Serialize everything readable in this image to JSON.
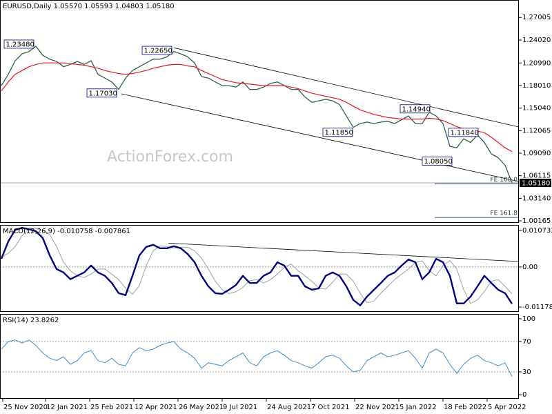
{
  "chart_data": [
    {
      "type": "line",
      "title": "EURUSD,Daily  1.05570 1.05593 1.04803 1.05180",
      "watermark": "ActionForex.com",
      "xlim": [
        -1,
        375
      ],
      "ylim": [
        0.999,
        1.293
      ],
      "yticks": [
        1.27005,
        {
          "value": 1.2402,
          "label": "1.24020"
        },
        {
          "value": 1.2099,
          "label": "1.20990"
        },
        {
          "value": 1.1801,
          "label": "1.18010"
        },
        {
          "value": 1.1504,
          "label": "1.15040"
        },
        1.12065,
        {
          "value": 1.0909,
          "label": "1.09090"
        },
        1.06115,
        {
          "value": 1.0314,
          "label": "1.03140"
        },
        1.00165
      ],
      "x": [
        0,
        5,
        10,
        15,
        20,
        25,
        30,
        35,
        40,
        45,
        50,
        55,
        60,
        65,
        70,
        75,
        80,
        85,
        90,
        95,
        100,
        105,
        110,
        115,
        120,
        125,
        130,
        135,
        140,
        145,
        150,
        155,
        160,
        165,
        170,
        175,
        180,
        185,
        190,
        195,
        200,
        205,
        210,
        215,
        220,
        225,
        230,
        235,
        240,
        245,
        250,
        255,
        260,
        265,
        270,
        275,
        280,
        285,
        290,
        295,
        300,
        305,
        310,
        315,
        320,
        325,
        330,
        335,
        340,
        345,
        350,
        355,
        360,
        365,
        370
      ],
      "series": [
        {
          "color": "#2f5f4f",
          "width": 1.3,
          "values": [
            1.18,
            1.195,
            1.213,
            1.222,
            1.225,
            1.232,
            1.22,
            1.215,
            1.212,
            1.205,
            1.208,
            1.212,
            1.208,
            1.213,
            1.195,
            1.19,
            1.185,
            1.175,
            1.19,
            1.2,
            1.205,
            1.21,
            1.215,
            1.215,
            1.218,
            1.225,
            1.222,
            1.218,
            1.21,
            1.192,
            1.19,
            1.185,
            1.18,
            1.18,
            1.178,
            1.185,
            1.175,
            1.175,
            1.178,
            1.183,
            1.185,
            1.18,
            1.175,
            1.175,
            1.165,
            1.158,
            1.16,
            1.162,
            1.16,
            1.155,
            1.14,
            1.125,
            1.13,
            1.132,
            1.13,
            1.132,
            1.133,
            1.13,
            1.135,
            1.14,
            1.13,
            1.13,
            1.145,
            1.14,
            1.13,
            1.1,
            1.098,
            1.11,
            1.105,
            1.115,
            1.105,
            1.09,
            1.085,
            1.075,
            1.052
          ]
        },
        {
          "color": "#e31a1c",
          "width": 1.2,
          "values": [
            1.173,
            1.185,
            1.195,
            1.2,
            1.205,
            1.208,
            1.21,
            1.21,
            1.21,
            1.21,
            1.209,
            1.208,
            1.207,
            1.205,
            1.203,
            1.2,
            1.198,
            1.196,
            1.195,
            1.196,
            1.198,
            1.2,
            1.203,
            1.205,
            1.207,
            1.208,
            1.208,
            1.206,
            1.205,
            1.2,
            1.196,
            1.192,
            1.188,
            1.186,
            1.184,
            1.183,
            1.182,
            1.181,
            1.18,
            1.18,
            1.18,
            1.18,
            1.178,
            1.176,
            1.173,
            1.17,
            1.168,
            1.166,
            1.164,
            1.162,
            1.158,
            1.153,
            1.148,
            1.145,
            1.142,
            1.14,
            1.138,
            1.137,
            1.136,
            1.136,
            1.136,
            1.136,
            1.137,
            1.136,
            1.134,
            1.13,
            1.126,
            1.123,
            1.121,
            1.12,
            1.118,
            1.112,
            1.105,
            1.098,
            1.093
          ]
        }
      ],
      "trendlines": [
        {
          "x": [
            125,
            375
          ],
          "values": [
            1.23,
            1.1255
          ]
        },
        {
          "x": [
            87,
            375
          ],
          "values": [
            1.1692,
            1.0536
          ]
        }
      ],
      "annotations": [
        {
          "text": "1.23480",
          "x": 2,
          "value": 1.2348
        },
        {
          "text": "1.22650",
          "x": 102,
          "value": 1.2265
        },
        {
          "text": "1.17030",
          "x": 62,
          "value": 1.1703
        },
        {
          "text": "1.11850",
          "x": 233,
          "value": 1.1185
        },
        {
          "text": "1.14940",
          "x": 289,
          "value": 1.1494
        },
        {
          "text": "1.11840",
          "x": 324,
          "value": 1.1184
        },
        {
          "text": "1.08050",
          "x": 305,
          "value": 1.0805
        }
      ],
      "levels": [
        {
          "label": "FE 100.0",
          "value": 1.0505,
          "x": [
            314,
            375
          ]
        },
        {
          "label": "FE 161.8",
          "value": 1.0061,
          "x": [
            314,
            375
          ]
        }
      ],
      "last_price": {
        "value": 1.0518,
        "label": "1.05180"
      }
    },
    {
      "type": "line",
      "title": "MACD(12,26,9) -0.010758 -0.007861",
      "xlim": [
        -1,
        375
      ],
      "ylim": [
        -0.0132,
        0.01235
      ],
      "yticks": [
        0.010732,
        {
          "value": 0,
          "label": "0.00"
        },
        -0.011781
      ],
      "levels": [
        0
      ],
      "x": [
        0,
        5,
        10,
        15,
        20,
        25,
        30,
        35,
        40,
        45,
        50,
        55,
        60,
        65,
        70,
        75,
        80,
        85,
        90,
        95,
        100,
        105,
        110,
        115,
        120,
        125,
        130,
        135,
        140,
        145,
        150,
        155,
        160,
        165,
        170,
        175,
        180,
        185,
        190,
        195,
        200,
        205,
        210,
        215,
        220,
        225,
        230,
        235,
        240,
        245,
        250,
        255,
        260,
        265,
        270,
        275,
        280,
        285,
        290,
        295,
        300,
        305,
        310,
        315,
        320,
        325,
        330,
        335,
        340,
        345,
        350,
        355,
        360,
        365,
        370
      ],
      "series": [
        {
          "color": "#a0a0a0",
          "width": 1,
          "values": [
            0.003,
            0.004,
            0.006,
            0.0092,
            0.0112,
            0.0113,
            0.0108,
            0.0095,
            0.006,
            0.0014,
            -0.0011,
            -0.0026,
            -0.0031,
            -0.0021,
            -0.0006,
            -0.0006,
            -0.0021,
            -0.0037,
            -0.0062,
            -0.008,
            -0.0055,
            0.0004,
            0.0047,
            0.0062,
            0.006,
            0.0055,
            0.0058,
            0.0058,
            0.0047,
            0.0026,
            -0.0006,
            -0.0042,
            -0.0067,
            -0.0078,
            -0.0073,
            -0.006,
            -0.004,
            -0.0037,
            -0.0047,
            -0.0037,
            -0.0021,
            -0.0001,
            0.0009,
            -0.0011,
            -0.0026,
            -0.0042,
            -0.0062,
            -0.0065,
            -0.0045,
            -0.0021,
            -0.0021,
            -0.0042,
            -0.0077,
            -0.0105,
            -0.01,
            -0.0077,
            -0.0057,
            -0.0037,
            -0.0021,
            -0.0006,
            0.0013,
            0.0018,
            -0.0011,
            -0.0026,
            0.0004,
            0.0019,
            -0.0006,
            -0.0067,
            -0.0107,
            -0.0097,
            -0.0072,
            -0.0042,
            -0.0037,
            -0.0057,
            -0.0079
          ]
        },
        {
          "color": "#000080",
          "width": 2.4,
          "values": [
            0.0024,
            0.0075,
            0.0109,
            0.0115,
            0.0111,
            0.0105,
            0.0085,
            0.0034,
            -0.0006,
            -0.0016,
            -0.0036,
            -0.0026,
            -0.0016,
            0.0004,
            -0.0016,
            -0.0026,
            -0.0047,
            -0.0077,
            -0.0083,
            -0.0026,
            0.0034,
            0.0059,
            0.0065,
            0.0055,
            0.0055,
            0.0061,
            0.0055,
            0.0038,
            0.0014,
            -0.0026,
            -0.0057,
            -0.0077,
            -0.0079,
            -0.0067,
            -0.0053,
            -0.0026,
            -0.0047,
            -0.0047,
            -0.0026,
            -0.0016,
            0.0014,
            0.0004,
            -0.0026,
            -0.0026,
            -0.0057,
            -0.0067,
            -0.0063,
            -0.0026,
            -0.0016,
            -0.0026,
            -0.0057,
            -0.0097,
            -0.0113,
            -0.0087,
            -0.0067,
            -0.0047,
            -0.0026,
            -0.0016,
            0.0004,
            0.0022,
            0.0014,
            -0.0036,
            -0.0016,
            0.0024,
            0.0014,
            -0.0026,
            -0.0107,
            -0.0107,
            -0.0087,
            -0.0057,
            -0.0026,
            -0.0047,
            -0.0067,
            -0.0077,
            -0.0108
          ]
        }
      ],
      "trendlines": [
        {
          "x": [
            121,
            375
          ],
          "values": [
            0.007,
            0.0016
          ]
        }
      ]
    },
    {
      "type": "line",
      "title": "RSI(14) 23.8262",
      "xlim": [
        -1,
        375
      ],
      "ylim": [
        -5.5,
        106.4
      ],
      "yticks": [
        100,
        70,
        30,
        0
      ],
      "levels": [
        70,
        30
      ],
      "x": [
        0,
        5,
        10,
        15,
        20,
        25,
        30,
        35,
        40,
        45,
        50,
        55,
        60,
        65,
        70,
        75,
        80,
        85,
        90,
        95,
        100,
        105,
        110,
        115,
        120,
        125,
        130,
        135,
        140,
        145,
        150,
        155,
        160,
        165,
        170,
        175,
        180,
        185,
        190,
        195,
        200,
        205,
        210,
        215,
        220,
        225,
        230,
        235,
        240,
        245,
        250,
        255,
        260,
        265,
        270,
        275,
        280,
        285,
        290,
        295,
        300,
        305,
        310,
        315,
        320,
        325,
        330,
        335,
        340,
        345,
        350,
        355,
        360,
        365,
        370
      ],
      "series": [
        {
          "color": "#3d8fce",
          "width": 1,
          "values": [
            60,
            70,
            72,
            68,
            72,
            65,
            55,
            48,
            45,
            50,
            40,
            45,
            55,
            58,
            45,
            42,
            48,
            40,
            38,
            55,
            62,
            58,
            60,
            65,
            68,
            70,
            60,
            55,
            48,
            35,
            42,
            40,
            38,
            45,
            50,
            55,
            42,
            38,
            50,
            55,
            58,
            52,
            45,
            42,
            38,
            35,
            42,
            50,
            52,
            48,
            38,
            30,
            32,
            45,
            50,
            55,
            50,
            52,
            55,
            58,
            48,
            35,
            55,
            60,
            55,
            40,
            28,
            40,
            48,
            52,
            45,
            42,
            38,
            42,
            23.8262
          ]
        }
      ],
      "xticks": [
        {
          "value": 1,
          "label": "25 Nov 2020"
        },
        {
          "value": 32,
          "label": "12 Jan 2021"
        },
        {
          "value": 64,
          "label": "25 Feb 2021"
        },
        {
          "value": 96,
          "label": "12 Apr 2021"
        },
        {
          "value": 128,
          "label": "26 May 2021"
        },
        {
          "value": 160,
          "label": "9 Jul 2021"
        },
        {
          "value": 192,
          "label": "24 Aug 2021"
        },
        {
          "value": 224,
          "label": "7 Oct 2021"
        },
        {
          "value": 256,
          "label": "22 Nov 2021"
        },
        {
          "value": 288,
          "label": "5 Jan 2022"
        },
        {
          "value": 320,
          "label": "18 Feb 2022"
        },
        {
          "value": 352,
          "label": "5 Apr 2022"
        }
      ]
    }
  ]
}
